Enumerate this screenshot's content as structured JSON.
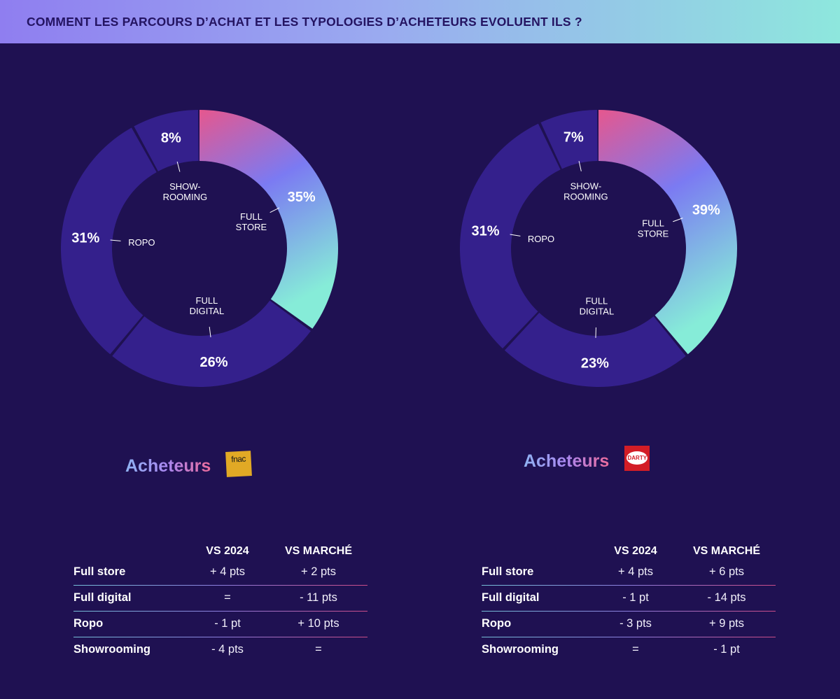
{
  "header": {
    "title": "COMMENT LES PARCOURS D’ACHAT ET LES TYPOLOGIES D’ACHETEURS EVOLUENT ILS ?"
  },
  "colors": {
    "background": "#1f1152",
    "segment_dark": "#34208c",
    "gradient_start": "#e6578e",
    "gradient_mid": "#7b7af2",
    "gradient_end": "#86ecd8"
  },
  "chart_data": [
    {
      "type": "pie",
      "brand": "fnac",
      "categories": [
        "FULL STORE",
        "FULL DIGITAL",
        "ROPO",
        "SHOW-ROOMING"
      ],
      "values": [
        35,
        26,
        31,
        8
      ],
      "value_labels": [
        "35%",
        "26%",
        "31%",
        "8%"
      ]
    },
    {
      "type": "pie",
      "brand": "darty",
      "categories": [
        "FULL STORE",
        "FULL DIGITAL",
        "ROPO",
        "SHOW-ROOMING"
      ],
      "values": [
        39,
        23,
        31,
        7
      ],
      "value_labels": [
        "39%",
        "23%",
        "31%",
        "7%"
      ]
    }
  ],
  "segment_labels": {
    "full_store": [
      "FULL",
      "STORE"
    ],
    "full_digital": [
      "FULL",
      "DIGITAL"
    ],
    "ropo": [
      "ROPO"
    ],
    "showrooming": [
      "SHOW-",
      "ROOMING"
    ]
  },
  "brands": [
    {
      "label": "Acheteurs",
      "logo_text": "fnac",
      "logo_icon": "fnac-logo"
    },
    {
      "label": "Acheteurs",
      "logo_text": "DARTY",
      "logo_icon": "darty-logo"
    }
  ],
  "tables": [
    {
      "headers": [
        "",
        "VS 2024",
        "VS MARCHÉ"
      ],
      "rows": [
        [
          "Full store",
          "+ 4 pts",
          "+ 2 pts"
        ],
        [
          "Full digital",
          "=",
          "- 11 pts"
        ],
        [
          "Ropo",
          "- 1 pt",
          "+ 10 pts"
        ],
        [
          "Showrooming",
          "- 4 pts",
          "="
        ]
      ]
    },
    {
      "headers": [
        "",
        "VS 2024",
        "VS MARCHÉ"
      ],
      "rows": [
        [
          "Full store",
          "+ 4 pts",
          "+ 6 pts"
        ],
        [
          "Full digital",
          "- 1 pt",
          "- 14 pts"
        ],
        [
          "Ropo",
          "- 3 pts",
          "+ 9 pts"
        ],
        [
          "Showrooming",
          "=",
          "- 1 pt"
        ]
      ]
    }
  ]
}
